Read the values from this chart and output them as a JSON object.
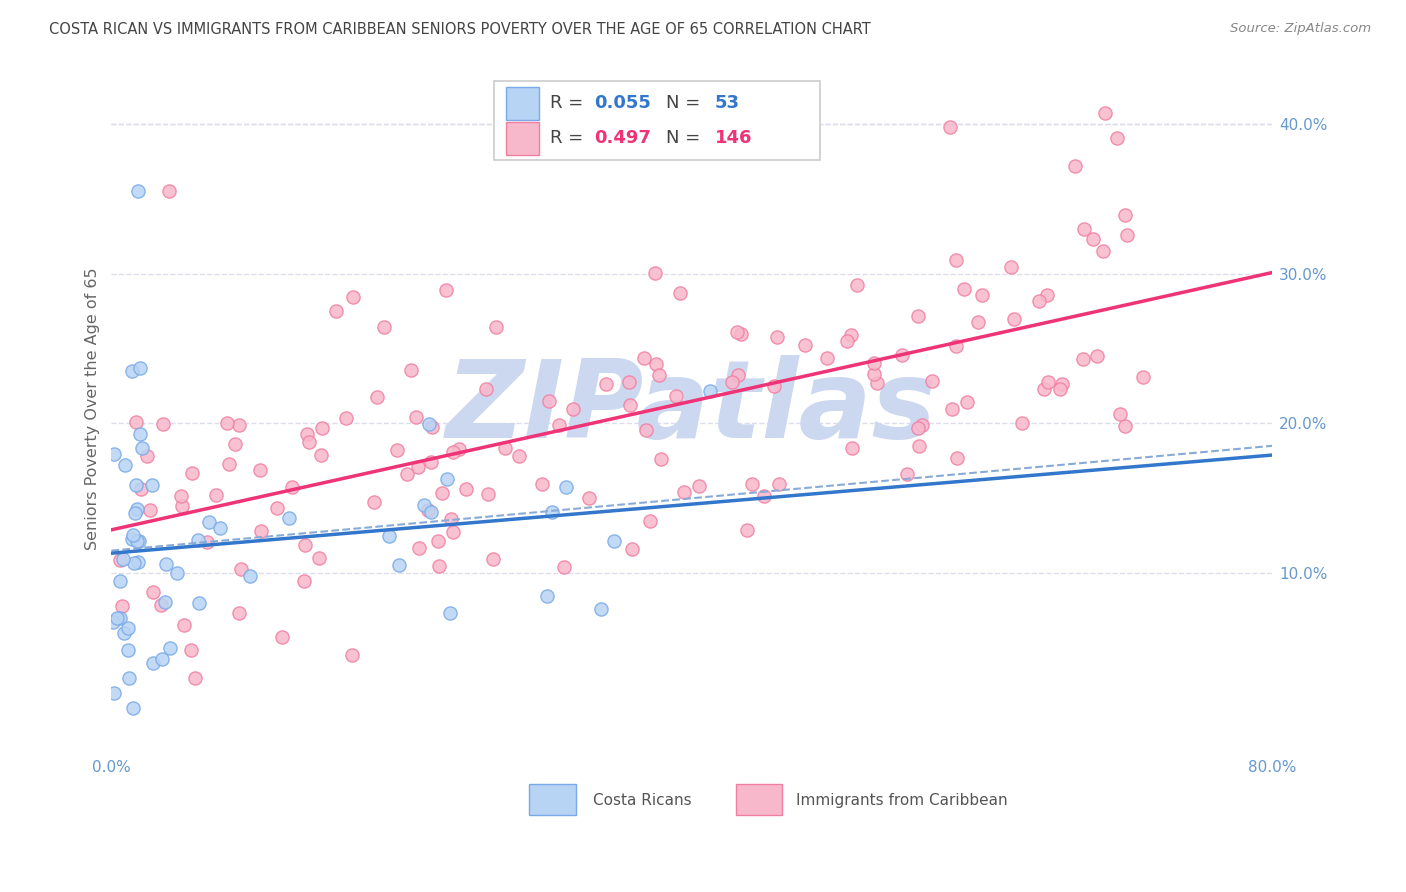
{
  "title": "COSTA RICAN VS IMMIGRANTS FROM CARIBBEAN SENIORS POVERTY OVER THE AGE OF 65 CORRELATION CHART",
  "source": "Source: ZipAtlas.com",
  "ylabel": "Seniors Poverty Over the Age of 65",
  "xlim": [
    0.0,
    0.8
  ],
  "ylim": [
    -0.02,
    0.44
  ],
  "x_tick_positions": [
    0.0,
    0.1,
    0.2,
    0.3,
    0.4,
    0.5,
    0.6,
    0.7,
    0.8
  ],
  "x_tick_labels": [
    "0.0%",
    "",
    "",
    "",
    "",
    "",
    "",
    "",
    "80.0%"
  ],
  "y_tick_positions": [
    0.0,
    0.1,
    0.2,
    0.3,
    0.4
  ],
  "y_tick_labels": [
    "",
    "10.0%",
    "20.0%",
    "30.0%",
    "40.0%"
  ],
  "legend_R1": "0.055",
  "legend_N1": "53",
  "legend_R2": "0.497",
  "legend_N2": "146",
  "costa_rican_facecolor": "#b8d4f4",
  "costa_rican_edgecolor": "#7aaae8",
  "caribbean_facecolor": "#f8b8cc",
  "caribbean_edgecolor": "#f080a0",
  "trend_blue_color": "#3377cc",
  "trend_pink_color": "#ee3377",
  "dashed_line_color": "#88aad8",
  "watermark_color": "#ccd8f0",
  "title_color": "#444444",
  "tick_color": "#6699cc",
  "grid_color": "#ddddee",
  "background_color": "#ffffff",
  "legend_text_color": "#444444",
  "source_color": "#888888"
}
